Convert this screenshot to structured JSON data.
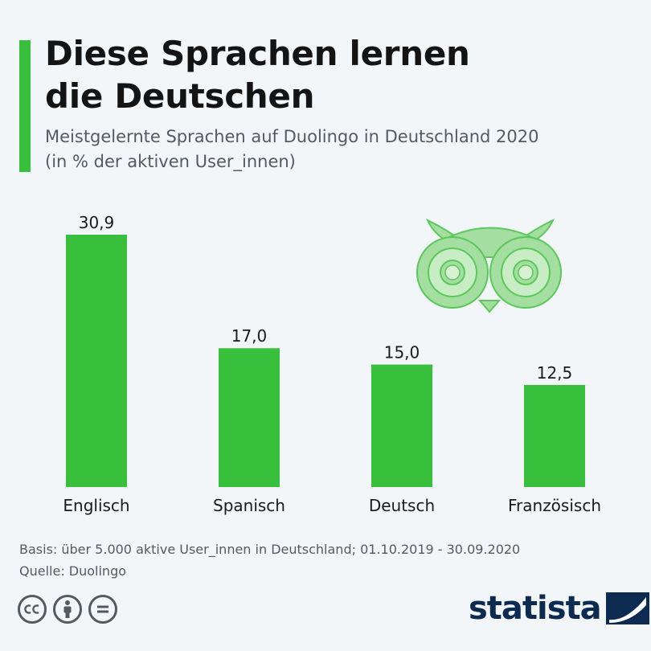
{
  "title_line1": "Diese Sprachen lernen",
  "title_line2": "die Deutschen",
  "subtitle_line1": "Meistgelernte Sprachen auf Duolingo in Deutschland 2020",
  "subtitle_line2": "(in % der aktiven User_innen)",
  "footer": {
    "basis": "Basis: über 5.000 aktive User_innen in Deutschland; 01.10.2019 - 30.09.2020",
    "source": "Quelle: Duolingo"
  },
  "brand": {
    "name": "statista"
  },
  "license_icons": [
    "cc-icon",
    "attribution-icon",
    "no-derivatives-icon"
  ],
  "colors": {
    "bar": "#38c03c",
    "accent": "#38c03c",
    "owl": "#a5dea1",
    "owl_stroke": "#5ac85a",
    "brand": "#0d2b50"
  },
  "chart_data": {
    "type": "bar",
    "categories": [
      "Englisch",
      "Spanisch",
      "Deutsch",
      "Französisch"
    ],
    "values": [
      30.9,
      17.0,
      15.0,
      12.5
    ],
    "value_labels": [
      "30,9",
      "17,0",
      "15,0",
      "12,5"
    ],
    "ylim": [
      0,
      30.9
    ],
    "grid": false,
    "legend": "none"
  }
}
